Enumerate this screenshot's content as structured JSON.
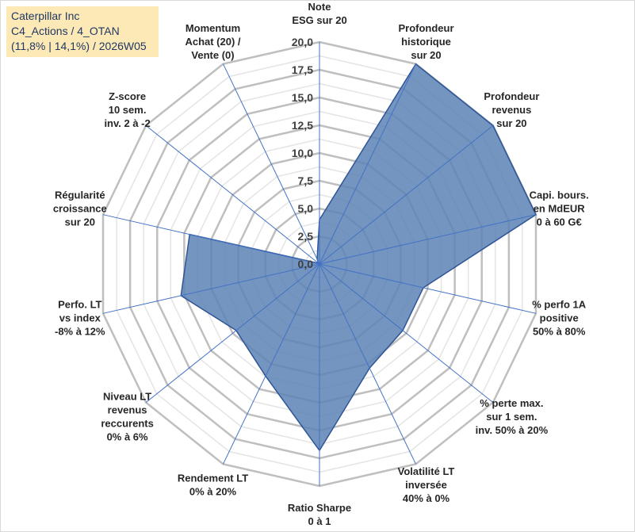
{
  "info": {
    "line1": "Caterpillar Inc",
    "line2": "C4_Actions / 4_OTAN",
    "line3": "(11,8% | 14,1%) / 2026W05"
  },
  "colors": {
    "fill": "#5b83b5",
    "stroke": "#2f5597",
    "axis": "#4472c4",
    "grid_major": "#bfbfbf",
    "grid_minor": "#e4e4e4",
    "info_bg": "#fde9b5"
  },
  "chart_data": {
    "type": "radar",
    "rmin": 0,
    "rmax": 20,
    "major_step": 2.5,
    "ticks": [
      "0,0",
      "2,5",
      "5,0",
      "7,5",
      "10,0",
      "12,5",
      "15,0",
      "17,5",
      "20,0"
    ],
    "axes": [
      [
        "Note",
        "ESG sur 20"
      ],
      [
        "Profondeur",
        "historique",
        "sur 20"
      ],
      [
        "Profondeur",
        "revenus",
        "sur 20"
      ],
      [
        "Capi. bours.",
        "en MdEUR",
        "0 à 60 G€"
      ],
      [
        "% perfo 1A",
        "positive",
        "50% à 80%"
      ],
      [
        "% perte max.",
        "sur 1 sem.",
        "inv. 50% à 20%"
      ],
      [
        "Volatilité LT",
        "inversée",
        "40% à 0%"
      ],
      [
        "Ratio Sharpe",
        "0 à 1"
      ],
      [
        "Rendement LT",
        "0% à 20%"
      ],
      [
        "Niveau LT",
        "revenus",
        "reccurents",
        "0% à 6%"
      ],
      [
        "Perfo. LT",
        "vs index",
        "-8% à 12%"
      ],
      [
        "Régularité",
        "croissance",
        "sur 20"
      ],
      [
        "Z-score",
        "10 sem.",
        "inv. 2 à -2"
      ],
      [
        "Momentum",
        "Achat (20) /",
        "Vente (0)"
      ]
    ],
    "series": [
      {
        "values": [
          4,
          20,
          20,
          20,
          9.6,
          9.6,
          10.4,
          16.8,
          11.2,
          9.6,
          12.8,
          12.0,
          0.1,
          0.5
        ]
      }
    ]
  }
}
